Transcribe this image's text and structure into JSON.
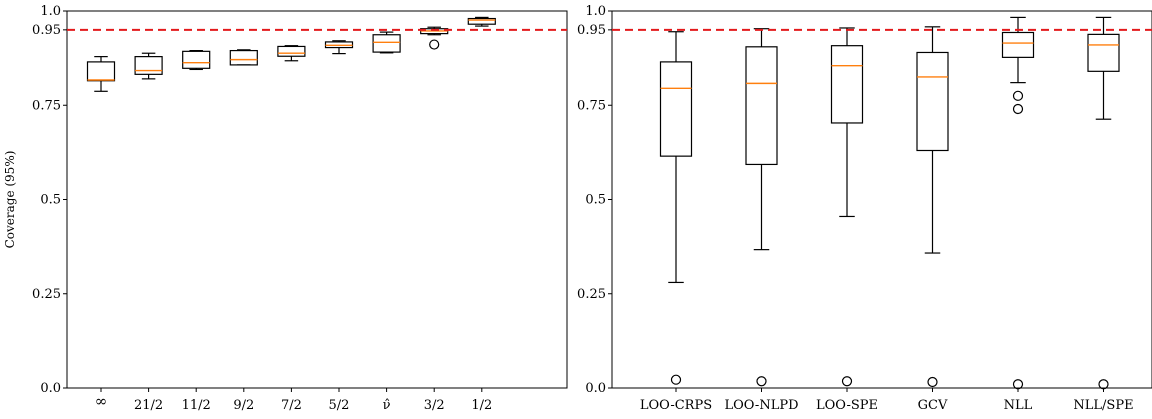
{
  "chart_data": [
    {
      "type": "box",
      "ylabel": "Coverage (95%)",
      "ylim": [
        0.0,
        1.0
      ],
      "yticks": [
        0.0,
        0.25,
        0.5,
        0.75,
        0.95,
        1.0
      ],
      "ytick_labels": [
        "0.0",
        "0.25",
        "0.5",
        "0.75",
        "0.95",
        "1.0"
      ],
      "reference_line": {
        "y": 0.95,
        "color": "#e31a1c",
        "style": "dashed"
      },
      "categories": [
        "∞",
        "21/2",
        "11/2",
        "9/2",
        "7/2",
        "5/2",
        "ν̂",
        "3/2",
        "1/2"
      ],
      "boxes": [
        {
          "whislo": 0.787,
          "q1": 0.815,
          "med": 0.817,
          "q3": 0.865,
          "whishi": 0.879,
          "fliers": []
        },
        {
          "whislo": 0.82,
          "q1": 0.832,
          "med": 0.842,
          "q3": 0.879,
          "whishi": 0.888,
          "fliers": []
        },
        {
          "whislo": 0.845,
          "q1": 0.848,
          "med": 0.863,
          "q3": 0.893,
          "whishi": 0.895,
          "fliers": []
        },
        {
          "whislo": 0.857,
          "q1": 0.857,
          "med": 0.871,
          "q3": 0.895,
          "whishi": 0.897,
          "fliers": []
        },
        {
          "whislo": 0.868,
          "q1": 0.88,
          "med": 0.888,
          "q3": 0.906,
          "whishi": 0.908,
          "fliers": []
        },
        {
          "whislo": 0.887,
          "q1": 0.903,
          "med": 0.909,
          "q3": 0.918,
          "whishi": 0.921,
          "fliers": []
        },
        {
          "whislo": 0.889,
          "q1": 0.891,
          "med": 0.917,
          "q3": 0.937,
          "whishi": 0.944,
          "fliers": []
        },
        {
          "whislo": 0.937,
          "q1": 0.94,
          "med": 0.947,
          "q3": 0.953,
          "whishi": 0.957,
          "fliers": [
            0.911
          ]
        },
        {
          "whislo": 0.96,
          "q1": 0.965,
          "med": 0.976,
          "q3": 0.98,
          "whishi": 0.983,
          "fliers": []
        }
      ]
    },
    {
      "type": "box",
      "ylabel": "",
      "ylim": [
        0.0,
        1.0
      ],
      "yticks": [
        0.0,
        0.25,
        0.5,
        0.75,
        0.95,
        1.0
      ],
      "ytick_labels": [
        "0.0",
        "0.25",
        "0.5",
        "0.75",
        "0.95",
        "1.0"
      ],
      "reference_line": {
        "y": 0.95,
        "color": "#e31a1c",
        "style": "dashed"
      },
      "categories": [
        "LOO-CRPS",
        "LOO-NLPD",
        "LOO-SPE",
        "GCV",
        "NLL",
        "NLL/SPE"
      ],
      "boxes": [
        {
          "whislo": 0.28,
          "q1": 0.615,
          "med": 0.795,
          "q3": 0.865,
          "whishi": 0.945,
          "fliers": [
            0.022
          ]
        },
        {
          "whislo": 0.367,
          "q1": 0.593,
          "med": 0.808,
          "q3": 0.905,
          "whishi": 0.953,
          "fliers": [
            0.018
          ]
        },
        {
          "whislo": 0.455,
          "q1": 0.703,
          "med": 0.855,
          "q3": 0.908,
          "whishi": 0.955,
          "fliers": [
            0.018
          ]
        },
        {
          "whislo": 0.358,
          "q1": 0.63,
          "med": 0.825,
          "q3": 0.89,
          "whishi": 0.958,
          "fliers": [
            0.016
          ]
        },
        {
          "whislo": 0.81,
          "q1": 0.877,
          "med": 0.915,
          "q3": 0.943,
          "whishi": 0.983,
          "fliers": [
            0.775,
            0.74,
            0.01
          ]
        },
        {
          "whislo": 0.713,
          "q1": 0.84,
          "med": 0.91,
          "q3": 0.938,
          "whishi": 0.983,
          "fliers": [
            0.01
          ]
        }
      ]
    }
  ]
}
